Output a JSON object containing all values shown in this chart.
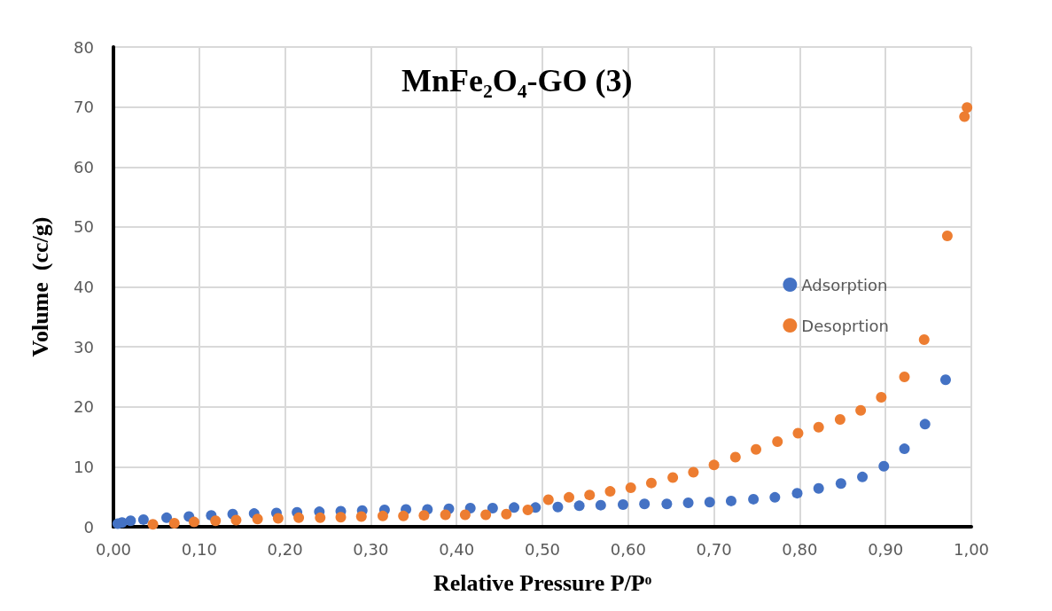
{
  "chart_data": {
    "type": "scatter",
    "title": "MnFe₂O₄-GO (3)",
    "xlabel": "Relative Pressure P/Pᵒ",
    "ylabel": "Volume  (cc/g)",
    "xlim": [
      0,
      1
    ],
    "xticks": [
      {
        "value": 0,
        "label": "0,00"
      },
      {
        "value": 0.1,
        "label": "0,10"
      },
      {
        "value": 0.2,
        "label": "0,20"
      },
      {
        "value": 0.3,
        "label": "0,30"
      },
      {
        "value": 0.4,
        "label": "0,40"
      },
      {
        "value": 0.5,
        "label": "0,50"
      },
      {
        "value": 0.6,
        "label": "0,60"
      },
      {
        "value": 0.7,
        "label": "0,70"
      },
      {
        "value": 0.8,
        "label": "0,80"
      },
      {
        "value": 0.9,
        "label": "0,90"
      },
      {
        "value": 1,
        "label": "1,00"
      }
    ],
    "ylim": [
      0,
      80
    ],
    "yticks": [
      0,
      10,
      20,
      30,
      40,
      50,
      60,
      70,
      80
    ],
    "grid": true,
    "legend": "right",
    "marker": "circle",
    "series": [
      {
        "name": "Adsorption",
        "color": "#4472c4",
        "x": [
          0.005,
          0.01,
          0.02,
          0.035,
          0.062,
          0.088,
          0.114,
          0.139,
          0.164,
          0.19,
          0.214,
          0.24,
          0.265,
          0.29,
          0.316,
          0.341,
          0.366,
          0.391,
          0.416,
          0.442,
          0.467,
          0.492,
          0.518,
          0.543,
          0.568,
          0.594,
          0.619,
          0.645,
          0.67,
          0.695,
          0.72,
          0.746,
          0.771,
          0.797,
          0.822,
          0.848,
          0.873,
          0.898,
          0.922,
          0.946,
          0.97
        ],
        "values": [
          0.5,
          0.7,
          1.0,
          1.2,
          1.5,
          1.7,
          1.9,
          2.1,
          2.2,
          2.3,
          2.4,
          2.5,
          2.6,
          2.7,
          2.8,
          2.9,
          2.9,
          3.0,
          3.1,
          3.1,
          3.2,
          3.2,
          3.3,
          3.5,
          3.6,
          3.7,
          3.8,
          3.8,
          4.0,
          4.1,
          4.3,
          4.6,
          4.9,
          5.6,
          6.4,
          7.2,
          8.3,
          10.1,
          13.0,
          17.1,
          24.5
        ]
      },
      {
        "name": "Desoprtion",
        "color": "#ed7d31",
        "x": [
          0.046,
          0.071,
          0.094,
          0.119,
          0.143,
          0.168,
          0.192,
          0.216,
          0.241,
          0.265,
          0.289,
          0.314,
          0.338,
          0.362,
          0.387,
          0.41,
          0.434,
          0.458,
          0.483,
          0.507,
          0.531,
          0.555,
          0.579,
          0.603,
          0.627,
          0.652,
          0.676,
          0.7,
          0.725,
          0.749,
          0.774,
          0.798,
          0.822,
          0.847,
          0.871,
          0.895,
          0.922,
          0.945,
          0.972,
          0.992,
          0.995
        ],
        "values": [
          0.4,
          0.6,
          0.8,
          1.0,
          1.1,
          1.3,
          1.4,
          1.5,
          1.5,
          1.6,
          1.7,
          1.8,
          1.8,
          1.9,
          2.0,
          2.0,
          2.0,
          2.1,
          2.8,
          4.5,
          4.9,
          5.3,
          5.9,
          6.5,
          7.3,
          8.2,
          9.1,
          10.3,
          11.6,
          12.9,
          14.2,
          15.6,
          16.6,
          17.9,
          19.4,
          21.6,
          25.0,
          31.2,
          48.5,
          68.4,
          69.9
        ]
      }
    ]
  }
}
